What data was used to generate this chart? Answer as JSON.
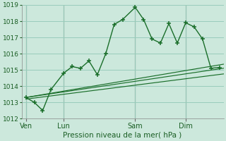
{
  "background_color": "#cce8dc",
  "grid_color": "#99ccbb",
  "line_color": "#1a6e2a",
  "xlabel": "Pression niveau de la mer( hPa )",
  "ylim": [
    1012,
    1019
  ],
  "yticks": [
    1012,
    1013,
    1014,
    1015,
    1016,
    1017,
    1018,
    1019
  ],
  "day_labels": [
    "Ven",
    "Lun",
    "Sam",
    "Dim"
  ],
  "day_positions": [
    0,
    9,
    26,
    38
  ],
  "xlim": [
    -1,
    47
  ],
  "series1_x": [
    0,
    2,
    4,
    6,
    9,
    11,
    13,
    15,
    17,
    19,
    21,
    23,
    26,
    28,
    30,
    32,
    34,
    36,
    38,
    40,
    42,
    44,
    46
  ],
  "series1_y": [
    1013.3,
    1013.0,
    1012.5,
    1013.8,
    1014.8,
    1015.2,
    1015.1,
    1015.55,
    1014.7,
    1016.0,
    1017.8,
    1018.1,
    1018.85,
    1018.1,
    1016.9,
    1016.65,
    1017.85,
    1016.65,
    1017.9,
    1017.65,
    1016.9,
    1015.1,
    1015.15
  ],
  "series2_x": [
    0,
    47
  ],
  "series2_y": [
    1013.2,
    1014.75
  ],
  "series3_x": [
    0,
    47
  ],
  "series3_y": [
    1013.3,
    1015.1
  ],
  "series4_x": [
    0,
    47
  ],
  "series4_y": [
    1013.3,
    1015.35
  ]
}
